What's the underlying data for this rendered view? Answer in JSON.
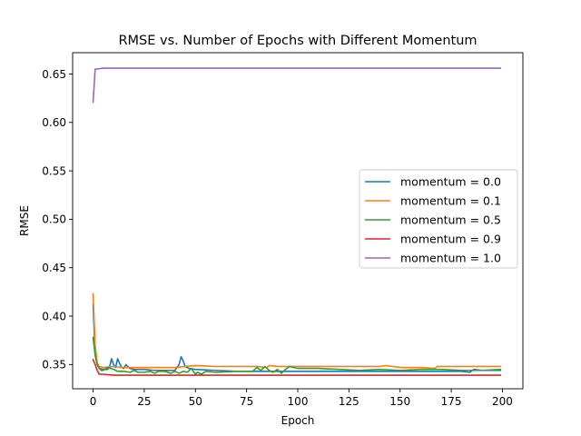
{
  "chart_data": {
    "type": "line",
    "title": "RMSE vs. Number of Epochs with Different Momentum",
    "xlabel": "Epoch",
    "ylabel": "RMSE",
    "xlim": [
      -10,
      210
    ],
    "ylim": [
      0.325,
      0.672
    ],
    "xticks": [
      0,
      25,
      50,
      75,
      100,
      125,
      150,
      175,
      200
    ],
    "yticks": [
      0.35,
      0.4,
      0.45,
      0.5,
      0.55,
      0.6,
      0.65
    ],
    "ytick_labels": [
      "0.35",
      "0.40",
      "0.45",
      "0.50",
      "0.55",
      "0.60",
      "0.65"
    ],
    "grid": false,
    "legend_position": "center-right",
    "series": [
      {
        "name": "momentum = 0.0",
        "color": "#1f77b4",
        "points": [
          [
            0,
            0.412
          ],
          [
            1,
            0.36
          ],
          [
            2,
            0.35
          ],
          [
            3,
            0.346
          ],
          [
            5,
            0.345
          ],
          [
            7,
            0.345
          ],
          [
            8,
            0.347
          ],
          [
            9,
            0.356
          ],
          [
            10,
            0.35
          ],
          [
            11,
            0.347
          ],
          [
            12,
            0.356
          ],
          [
            13,
            0.351
          ],
          [
            14,
            0.347
          ],
          [
            15,
            0.346
          ],
          [
            16,
            0.35
          ],
          [
            17,
            0.348
          ],
          [
            18,
            0.346
          ],
          [
            20,
            0.345
          ],
          [
            25,
            0.345
          ],
          [
            30,
            0.344
          ],
          [
            35,
            0.344
          ],
          [
            40,
            0.344
          ],
          [
            42,
            0.35
          ],
          [
            43,
            0.358
          ],
          [
            44,
            0.354
          ],
          [
            45,
            0.348
          ],
          [
            47,
            0.346
          ],
          [
            50,
            0.345
          ],
          [
            60,
            0.344
          ],
          [
            70,
            0.343
          ],
          [
            80,
            0.343
          ],
          [
            90,
            0.343
          ],
          [
            100,
            0.343
          ],
          [
            110,
            0.343
          ],
          [
            120,
            0.343
          ],
          [
            130,
            0.343
          ],
          [
            140,
            0.343
          ],
          [
            150,
            0.343
          ],
          [
            160,
            0.343
          ],
          [
            170,
            0.343
          ],
          [
            180,
            0.343
          ],
          [
            184,
            0.342
          ],
          [
            186,
            0.345
          ],
          [
            190,
            0.344
          ],
          [
            199,
            0.344
          ]
        ]
      },
      {
        "name": "momentum = 0.1",
        "color": "#ff7f0e",
        "points": [
          [
            0,
            0.423
          ],
          [
            1,
            0.37
          ],
          [
            2,
            0.352
          ],
          [
            3,
            0.348
          ],
          [
            5,
            0.347
          ],
          [
            10,
            0.348
          ],
          [
            15,
            0.347
          ],
          [
            20,
            0.347
          ],
          [
            25,
            0.347
          ],
          [
            30,
            0.347
          ],
          [
            35,
            0.347
          ],
          [
            40,
            0.347
          ],
          [
            45,
            0.348
          ],
          [
            50,
            0.349
          ],
          [
            60,
            0.348
          ],
          [
            70,
            0.348
          ],
          [
            80,
            0.348
          ],
          [
            85,
            0.347
          ],
          [
            86,
            0.349
          ],
          [
            90,
            0.348
          ],
          [
            100,
            0.348
          ],
          [
            110,
            0.348
          ],
          [
            120,
            0.348
          ],
          [
            130,
            0.348
          ],
          [
            140,
            0.348
          ],
          [
            143,
            0.349
          ],
          [
            150,
            0.347
          ],
          [
            160,
            0.347
          ],
          [
            167,
            0.346
          ],
          [
            168,
            0.348
          ],
          [
            180,
            0.348
          ],
          [
            190,
            0.348
          ],
          [
            199,
            0.348
          ]
        ]
      },
      {
        "name": "momentum = 0.5",
        "color": "#2ca02c",
        "points": [
          [
            0,
            0.378
          ],
          [
            1,
            0.36
          ],
          [
            2,
            0.35
          ],
          [
            3,
            0.346
          ],
          [
            4,
            0.344
          ],
          [
            5,
            0.344
          ],
          [
            7,
            0.347
          ],
          [
            10,
            0.345
          ],
          [
            12,
            0.343
          ],
          [
            15,
            0.343
          ],
          [
            18,
            0.342
          ],
          [
            20,
            0.344
          ],
          [
            22,
            0.342
          ],
          [
            25,
            0.342
          ],
          [
            28,
            0.343
          ],
          [
            30,
            0.341
          ],
          [
            32,
            0.343
          ],
          [
            35,
            0.343
          ],
          [
            38,
            0.341
          ],
          [
            40,
            0.343
          ],
          [
            42,
            0.341
          ],
          [
            44,
            0.343
          ],
          [
            46,
            0.342
          ],
          [
            48,
            0.346
          ],
          [
            49,
            0.343
          ],
          [
            50,
            0.34
          ],
          [
            51,
            0.342
          ],
          [
            53,
            0.34
          ],
          [
            55,
            0.343
          ],
          [
            60,
            0.342
          ],
          [
            70,
            0.343
          ],
          [
            78,
            0.343
          ],
          [
            80,
            0.347
          ],
          [
            82,
            0.344
          ],
          [
            84,
            0.348
          ],
          [
            86,
            0.344
          ],
          [
            88,
            0.342
          ],
          [
            90,
            0.345
          ],
          [
            92,
            0.341
          ],
          [
            94,
            0.345
          ],
          [
            96,
            0.348
          ],
          [
            100,
            0.346
          ],
          [
            110,
            0.346
          ],
          [
            120,
            0.345
          ],
          [
            130,
            0.344
          ],
          [
            140,
            0.345
          ],
          [
            150,
            0.344
          ],
          [
            160,
            0.345
          ],
          [
            170,
            0.345
          ],
          [
            180,
            0.344
          ],
          [
            190,
            0.344
          ],
          [
            199,
            0.345
          ]
        ]
      },
      {
        "name": "momentum = 0.9",
        "color": "#d62728",
        "points": [
          [
            0,
            0.355
          ],
          [
            1,
            0.35
          ],
          [
            2,
            0.344
          ],
          [
            3,
            0.34
          ],
          [
            5,
            0.34
          ],
          [
            10,
            0.339
          ],
          [
            15,
            0.339
          ],
          [
            20,
            0.339
          ],
          [
            30,
            0.339
          ],
          [
            40,
            0.339
          ],
          [
            50,
            0.339
          ],
          [
            60,
            0.339
          ],
          [
            70,
            0.339
          ],
          [
            80,
            0.339
          ],
          [
            90,
            0.339
          ],
          [
            100,
            0.339
          ],
          [
            110,
            0.339
          ],
          [
            120,
            0.339
          ],
          [
            130,
            0.339
          ],
          [
            140,
            0.339
          ],
          [
            150,
            0.339
          ],
          [
            160,
            0.339
          ],
          [
            170,
            0.339
          ],
          [
            180,
            0.339
          ],
          [
            190,
            0.339
          ],
          [
            199,
            0.339
          ]
        ]
      },
      {
        "name": "momentum = 1.0",
        "color": "#9467bd",
        "points": [
          [
            0,
            0.621
          ],
          [
            1,
            0.655
          ],
          [
            5,
            0.656
          ],
          [
            50,
            0.656
          ],
          [
            100,
            0.656
          ],
          [
            150,
            0.656
          ],
          [
            199,
            0.656
          ]
        ]
      }
    ]
  }
}
